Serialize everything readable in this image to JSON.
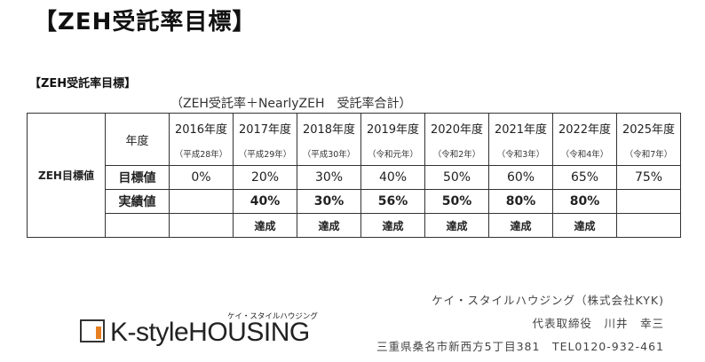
{
  "header": {
    "title": "【ZEH受託率目標】",
    "subtitle": "【ZEH受託率目標】",
    "note": "（ZEH受託率＋NearlyZEH　受託率合計）"
  },
  "table": {
    "row_header": "ZEH目標値",
    "nendo_label": "年度",
    "target_label": "目標値",
    "actual_label": "実績値",
    "years": [
      {
        "year": "2016年度",
        "era": "（平成28年）",
        "target": "0%",
        "actual": "",
        "status": ""
      },
      {
        "year": "2017年度",
        "era": "（平成29年）",
        "target": "20%",
        "actual": "40%",
        "status": "達成"
      },
      {
        "year": "2018年度",
        "era": "（平成30年）",
        "target": "30%",
        "actual": "30%",
        "status": "達成"
      },
      {
        "year": "2019年度",
        "era": "（令和元年）",
        "target": "40%",
        "actual": "56%",
        "status": "達成"
      },
      {
        "year": "2020年度",
        "era": "（令和2年）",
        "target": "50%",
        "actual": "50%",
        "status": "達成"
      },
      {
        "year": "2021年度",
        "era": "（令和3年）",
        "target": "60%",
        "actual": "80%",
        "status": "達成"
      },
      {
        "year": "2022年度",
        "era": "（令和4年）",
        "target": "65%",
        "actual": "80%",
        "status": "達成"
      },
      {
        "year": "2025年度",
        "era": "（令和7年）",
        "target": "75%",
        "actual": "",
        "status": ""
      }
    ]
  },
  "company": {
    "name": "ケイ・スタイルハウジング（株式会社KYK)",
    "representative": "代表取締役　川井　幸三",
    "address": "三重県桑名市新西方5丁目381　TEL0120-932-461"
  },
  "logo": {
    "text": "K-styleHOUSING",
    "tagline": "ケイ・スタイルハウジング",
    "accent_color": "#e67e22"
  }
}
